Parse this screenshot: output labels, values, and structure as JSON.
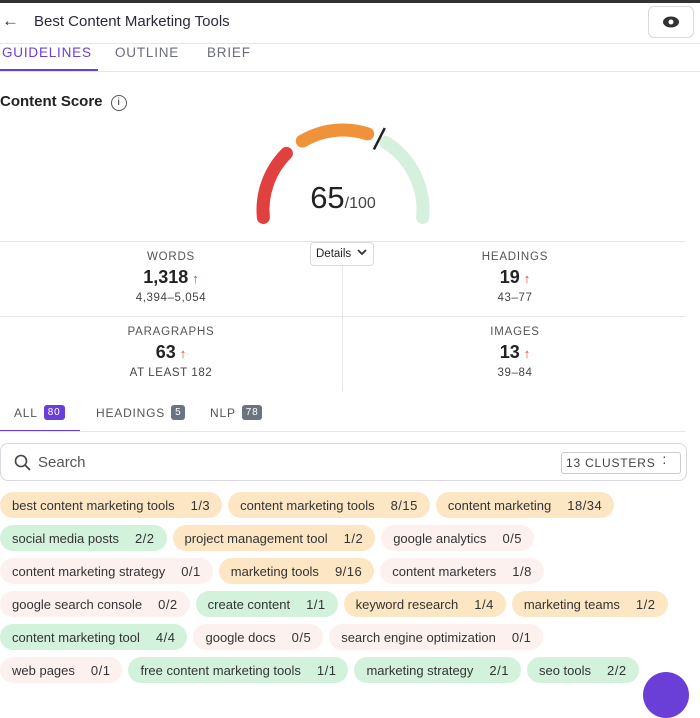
{
  "header": {
    "back": "←",
    "title": "Best Content Marketing Tools"
  },
  "tabs": [
    {
      "label": "GUIDELINES",
      "active": true
    },
    {
      "label": "OUTLINE",
      "active": false
    },
    {
      "label": "BRIEF",
      "active": false
    }
  ],
  "content_score": {
    "title": "Content Score",
    "info": "i",
    "score": 65,
    "max": {
      "value": 100,
      "label": "/100"
    },
    "details": "Details"
  },
  "stats": [
    {
      "label": "WORDS",
      "value": "1,318",
      "trend": "↑",
      "target": "4,394–5,054"
    },
    {
      "label": "HEADINGS",
      "value": "19",
      "trend": "↑",
      "target": "43–77"
    },
    {
      "label": "PARAGRAPHS",
      "value": "63",
      "trend": "↑",
      "target": "AT LEAST 182"
    },
    {
      "label": "IMAGES",
      "value": "13",
      "trend": "↑",
      "target": "39–84"
    }
  ],
  "filters": [
    {
      "label": "ALL",
      "count": "80",
      "active": true
    },
    {
      "label": "HEADINGS",
      "count": "5",
      "active": false
    },
    {
      "label": "NLP",
      "count": "78",
      "active": false
    }
  ],
  "search": {
    "placeholder": "Search",
    "clusters": "13 CLUSTERS"
  },
  "keyword_rows": [
    [
      {
        "term": "best content marketing tools",
        "count": "1/3",
        "state": "partial"
      },
      {
        "term": "content marketing tools",
        "count": "8/15",
        "state": "partial"
      },
      {
        "term": "content marketing",
        "count": "18/34",
        "state": "partial"
      }
    ],
    [
      {
        "term": "social media posts",
        "count": "2/2",
        "state": "met"
      },
      {
        "term": "project management tool",
        "count": "1/2",
        "state": "partial"
      },
      {
        "term": "google analytics",
        "count": "0/5",
        "state": "missing"
      }
    ],
    [
      {
        "term": "content marketing strategy",
        "count": "0/1",
        "state": "missing"
      },
      {
        "term": "marketing tools",
        "count": "9/16",
        "state": "partial"
      },
      {
        "term": "content marketers",
        "count": "1/8",
        "state": "missing"
      }
    ],
    [
      {
        "term": "google search console",
        "count": "0/2",
        "state": "missing"
      },
      {
        "term": "create content",
        "count": "1/1",
        "state": "met"
      },
      {
        "term": "keyword research",
        "count": "1/4",
        "state": "partial"
      },
      {
        "term": "marketing teams",
        "count": "1/2",
        "state": "partial"
      }
    ],
    [
      {
        "term": "content marketing tool",
        "count": "4/4",
        "state": "met"
      },
      {
        "term": "google docs",
        "count": "0/5",
        "state": "missing"
      },
      {
        "term": "search engine optimization",
        "count": "0/1",
        "state": "missing"
      }
    ],
    [
      {
        "term": "web pages",
        "count": "0/1",
        "state": "missing"
      },
      {
        "term": "free content marketing tools",
        "count": "1/1",
        "state": "met"
      },
      {
        "term": "marketing strategy",
        "count": "2/1",
        "state": "met"
      },
      {
        "term": "seo tools",
        "count": "2/2",
        "state": "met"
      }
    ]
  ]
}
